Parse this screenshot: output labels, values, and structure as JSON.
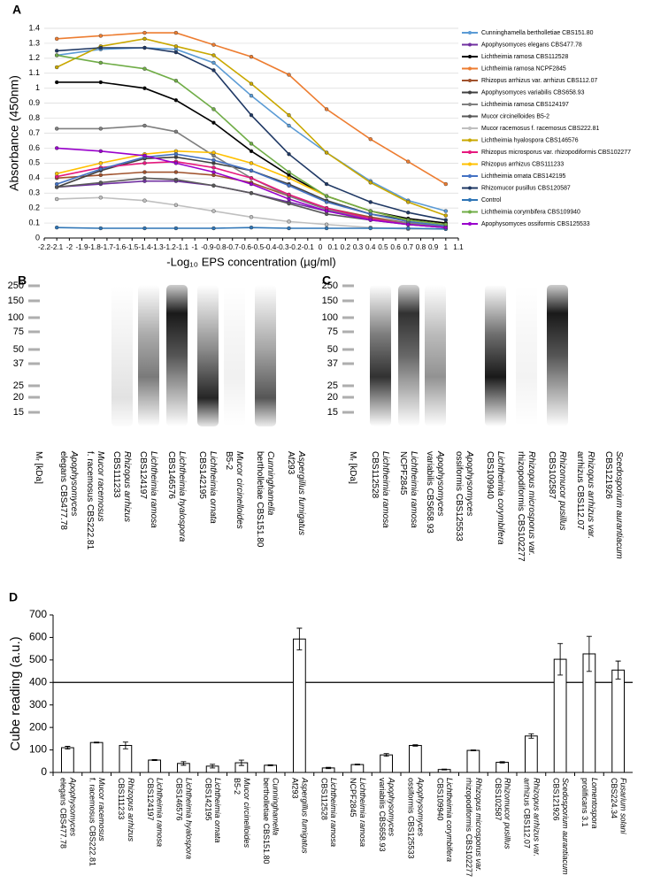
{
  "chart_data": [
    {
      "type": "line",
      "label": "A",
      "ylabel": "Absorbance (450nm)",
      "xlabel": "-Log₁₀ EPS concentration (µg/ml)",
      "x": [
        -2.1,
        -1.75,
        -1.4,
        -1.15,
        -0.85,
        -0.55,
        -0.25,
        0.05,
        0.4,
        0.7,
        1.0
      ],
      "xlim": [
        -2.2,
        1.1
      ],
      "xticks": [
        -2.2,
        -2.1,
        -2,
        -1.9,
        -1.8,
        -1.7,
        -1.6,
        -1.5,
        -1.4,
        -1.3,
        -1.2,
        -1.1,
        -1,
        -0.9,
        -0.8,
        -0.7,
        -0.6,
        -0.5,
        -0.4,
        -0.3,
        -0.2,
        -0.1,
        0,
        0.1,
        0.2,
        0.3,
        0.4,
        0.5,
        0.6,
        0.7,
        0.8,
        0.9,
        1,
        1.1
      ],
      "ylim": [
        0,
        1.4
      ],
      "yticks": [
        0,
        0.1,
        0.2,
        0.3,
        0.4,
        0.5,
        0.6,
        0.7,
        0.8,
        0.9,
        1,
        1.1,
        1.2,
        1.3,
        1.4
      ],
      "grid": true,
      "legend": "right",
      "series": [
        {
          "name": "Cunninghamella bertholletiae CBS151.80",
          "color": "#5b9bd5",
          "values": [
            1.22,
            1.26,
            1.27,
            1.26,
            1.17,
            0.95,
            0.75,
            0.57,
            0.38,
            0.25,
            0.18
          ]
        },
        {
          "name": "Apophysomyces elegans CBS477.78",
          "color": "#7030a0",
          "values": [
            0.34,
            0.36,
            0.38,
            0.38,
            0.35,
            0.3,
            0.24,
            0.18,
            0.13,
            0.1,
            0.08
          ]
        },
        {
          "name": "Lichtheimia ramosa CBS112528",
          "color": "#000000",
          "values": [
            1.04,
            1.04,
            1.0,
            0.92,
            0.77,
            0.58,
            0.42,
            0.28,
            0.18,
            0.13,
            0.1
          ]
        },
        {
          "name": "Lichtheimia ramosa NCPF2845",
          "color": "#ed7d31",
          "values": [
            1.33,
            1.35,
            1.37,
            1.37,
            1.29,
            1.21,
            1.09,
            0.86,
            0.66,
            0.51,
            0.36
          ]
        },
        {
          "name": "Rhizopus arrhizus var. arrhizus CBS112.07",
          "color": "#a0522d",
          "values": [
            0.4,
            0.42,
            0.44,
            0.44,
            0.42,
            0.37,
            0.28,
            0.2,
            0.14,
            0.1,
            0.08
          ]
        },
        {
          "name": "Apophysomyces variabilis CBS658.93",
          "color": "#404040",
          "values": [
            0.34,
            0.45,
            0.53,
            0.54,
            0.5,
            0.45,
            0.36,
            0.25,
            0.16,
            0.12,
            0.09
          ]
        },
        {
          "name": "Lichtheimia ramosa CBS124197",
          "color": "#7f7f7f",
          "values": [
            0.73,
            0.73,
            0.75,
            0.71,
            0.55,
            0.4,
            0.28,
            0.19,
            0.13,
            0.1,
            0.08
          ]
        },
        {
          "name": "Mucor circinelloides B5-2",
          "color": "#595959",
          "values": [
            0.34,
            0.37,
            0.4,
            0.39,
            0.35,
            0.3,
            0.23,
            0.16,
            0.12,
            0.09,
            0.07
          ]
        },
        {
          "name": "Mucor racemosus f. racemosus CBS222.81",
          "color": "#bfbfbf",
          "values": [
            0.26,
            0.27,
            0.25,
            0.22,
            0.18,
            0.14,
            0.11,
            0.09,
            0.07,
            0.06,
            0.06
          ]
        },
        {
          "name": "Lichtheimia hyalospora CBS146576",
          "color": "#c9a800",
          "values": [
            1.14,
            1.28,
            1.33,
            1.28,
            1.22,
            1.03,
            0.82,
            0.57,
            0.37,
            0.24,
            0.15
          ]
        },
        {
          "name": "Rhizopus microsporus var. rhizopodiformis CBS102277",
          "color": "#e6197e",
          "values": [
            0.41,
            0.47,
            0.5,
            0.51,
            0.47,
            0.4,
            0.29,
            0.2,
            0.13,
            0.09,
            0.07
          ]
        },
        {
          "name": "Rhizopus arrhizus CBS111233",
          "color": "#ffc000",
          "values": [
            0.43,
            0.5,
            0.56,
            0.58,
            0.57,
            0.5,
            0.4,
            0.28,
            0.18,
            0.12,
            0.09
          ]
        },
        {
          "name": "Lichtheimia ornata CBS142195",
          "color": "#4472c4",
          "values": [
            0.36,
            0.46,
            0.54,
            0.56,
            0.52,
            0.45,
            0.35,
            0.24,
            0.16,
            0.11,
            0.08
          ]
        },
        {
          "name": "Rhizomucor pusillus CBS120587",
          "color": "#1f3864",
          "values": [
            1.25,
            1.27,
            1.27,
            1.24,
            1.12,
            0.82,
            0.56,
            0.36,
            0.24,
            0.17,
            0.12
          ]
        },
        {
          "name": "Control",
          "color": "#2e75b6",
          "values": [
            0.07,
            0.065,
            0.065,
            0.065,
            0.065,
            0.07,
            0.065,
            0.065,
            0.065,
            0.065,
            0.06
          ]
        },
        {
          "name": "Lichtheimia corymbifera CBS109940",
          "color": "#70ad47",
          "values": [
            1.22,
            1.17,
            1.13,
            1.05,
            0.86,
            0.63,
            0.44,
            0.28,
            0.18,
            0.12,
            0.09
          ]
        },
        {
          "name": "Apophysomyces ossiformis CBS125533",
          "color": "#9900cc",
          "values": [
            0.6,
            0.58,
            0.55,
            0.5,
            0.44,
            0.36,
            0.26,
            0.18,
            0.12,
            0.09,
            0.07
          ]
        }
      ]
    },
    {
      "type": "bar",
      "label": "D",
      "ylabel": "Cube reading (a.u.)",
      "categories": [
        [
          "Apophysomyces",
          "elegans CBS477.78"
        ],
        [
          "Mucor racemosus",
          "f. racemosus CBS222.81"
        ],
        [
          "Rhizopus arrhizus",
          "CBS111233"
        ],
        [
          "Lichtheimia ramosa",
          "CBS124197"
        ],
        [
          "Lichtheimia hyalospora",
          "CBS146576"
        ],
        [
          "Lichtheimia ornata",
          "CBS142195"
        ],
        [
          "Mucor circinelloides",
          "B5-2"
        ],
        [
          "Cunninghamella",
          "bertholletiae CBS151.80"
        ],
        [
          "Aspergillus fumigatus",
          "Af293"
        ],
        [
          "Lichtheimia ramosa",
          "CBS112528"
        ],
        [
          "Lichtheimia ramosa",
          "NCPF2845"
        ],
        [
          "Apophysomyces",
          "variabilis CBS658.93"
        ],
        [
          "Apophysomyces",
          "ossiformis CBS125533"
        ],
        [
          "Lichtheimia corymbifera",
          "CBS109940"
        ],
        [
          "Rhizopus microsporus var.",
          "rhizopodiformis CBS102277"
        ],
        [
          "Rhizomucor pusillus",
          "CBS102587"
        ],
        [
          "Rhizopus arrhizus var.",
          "arrhizus CBS112.07"
        ],
        [
          "Scedosporium aurantiacum",
          "CBS121926"
        ],
        [
          "Lomentospora",
          "prolificans 3.1"
        ],
        [
          "Fusarium solani",
          "CBS224.34"
        ]
      ],
      "values": [
        110,
        133,
        120,
        55,
        40,
        28,
        43,
        32,
        593,
        20,
        35,
        78,
        120,
        13,
        98,
        45,
        162,
        503,
        527,
        455
      ],
      "errors": [
        6,
        2,
        15,
        2,
        8,
        8,
        12,
        2,
        48,
        3,
        2,
        6,
        3,
        2,
        2,
        3,
        10,
        70,
        78,
        40
      ],
      "threshold": 400,
      "color": "#ffffff",
      "ylim": [
        0,
        700
      ],
      "yticks": [
        0,
        100,
        200,
        300,
        400,
        500,
        600,
        700
      ]
    }
  ],
  "blots": [
    {
      "label": "B",
      "mr_label": "Mᵣ [kDa]",
      "ladder": [
        250,
        150,
        100,
        75,
        50,
        37,
        25,
        20,
        15
      ],
      "lanes": [
        [
          "Apophysomyces",
          "elegans CBS477.78"
        ],
        [
          "Mucor racemosus",
          "f. racemosus CBS222.81"
        ],
        [
          "Rhizopus arrhizus",
          "CBS111233"
        ],
        [
          "Lichtheimia ramosa",
          "CBS124197"
        ],
        [
          "Lichtheimia hyalospora",
          "CBS146576"
        ],
        [
          "Lichtheimia ornata",
          "CBS142195"
        ],
        [
          "Mucor circinelloides",
          "B5-2"
        ],
        [
          "Cunninghamella",
          "bertholletiae CBS151.80"
        ],
        [
          "Aspergillus fumigatus",
          "Af293"
        ]
      ]
    },
    {
      "label": "C",
      "mr_label": "Mᵣ [kDa]",
      "ladder": [
        250,
        150,
        100,
        75,
        50,
        37,
        25,
        20,
        15
      ],
      "lanes": [
        [
          "Lichtheimia ramosa",
          "CBS112528"
        ],
        [
          "Lichtheimia ramosa",
          "NCPF2845"
        ],
        [
          "Apophysomyces",
          "variabilis CBS658.93"
        ],
        [
          "Apophysomyces",
          "ossiformis CBS125533"
        ],
        [
          "Lichtheimia corymbifera",
          "CBS109940"
        ],
        [
          "Rhizopus microsporus var.",
          "rhizopodiformis CBS102277"
        ],
        [
          "Rhizomucor pusillus",
          "CBS102587"
        ],
        [
          "Rhizopus arrhizus var.",
          "arrhizus CBS112.07"
        ],
        [
          "Scedosporium aurantiacum",
          "CBS121926"
        ]
      ]
    }
  ]
}
